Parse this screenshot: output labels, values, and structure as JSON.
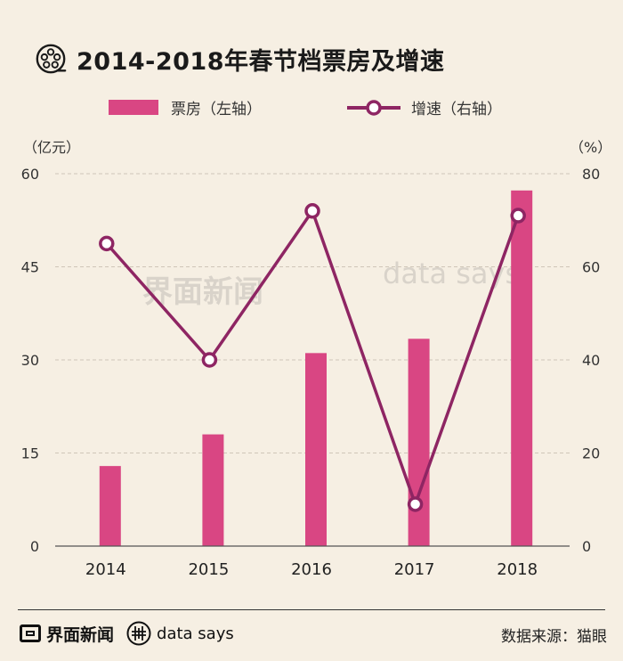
{
  "title": "2014-2018年春节档票房及增速",
  "left_unit": "（亿元）",
  "right_unit": "（%）",
  "footer": {
    "brand": "界面新闻",
    "datasays": "data says",
    "source": "数据来源：猫眼"
  },
  "colors": {
    "bar": "#d94683",
    "line": "#8e2563",
    "background": "#f6efe3"
  },
  "chart_data": {
    "type": "bar",
    "categories": [
      "2014",
      "2015",
      "2016",
      "2017",
      "2018"
    ],
    "series": [
      {
        "name": "票房（左轴）",
        "type": "bar",
        "axis": "left",
        "values": [
          12.9,
          18.0,
          31.1,
          33.4,
          57.3
        ]
      },
      {
        "name": "增速（右轴）",
        "type": "line",
        "axis": "right",
        "values": [
          65,
          40,
          72,
          9,
          71
        ]
      }
    ],
    "left_axis": {
      "ylim": [
        0,
        60
      ],
      "ticks": [
        0,
        15,
        30,
        45,
        60
      ]
    },
    "right_axis": {
      "ylim": [
        0,
        80
      ],
      "ticks": [
        0,
        20,
        40,
        60,
        80
      ]
    },
    "legend": "top-center",
    "grid": true
  }
}
